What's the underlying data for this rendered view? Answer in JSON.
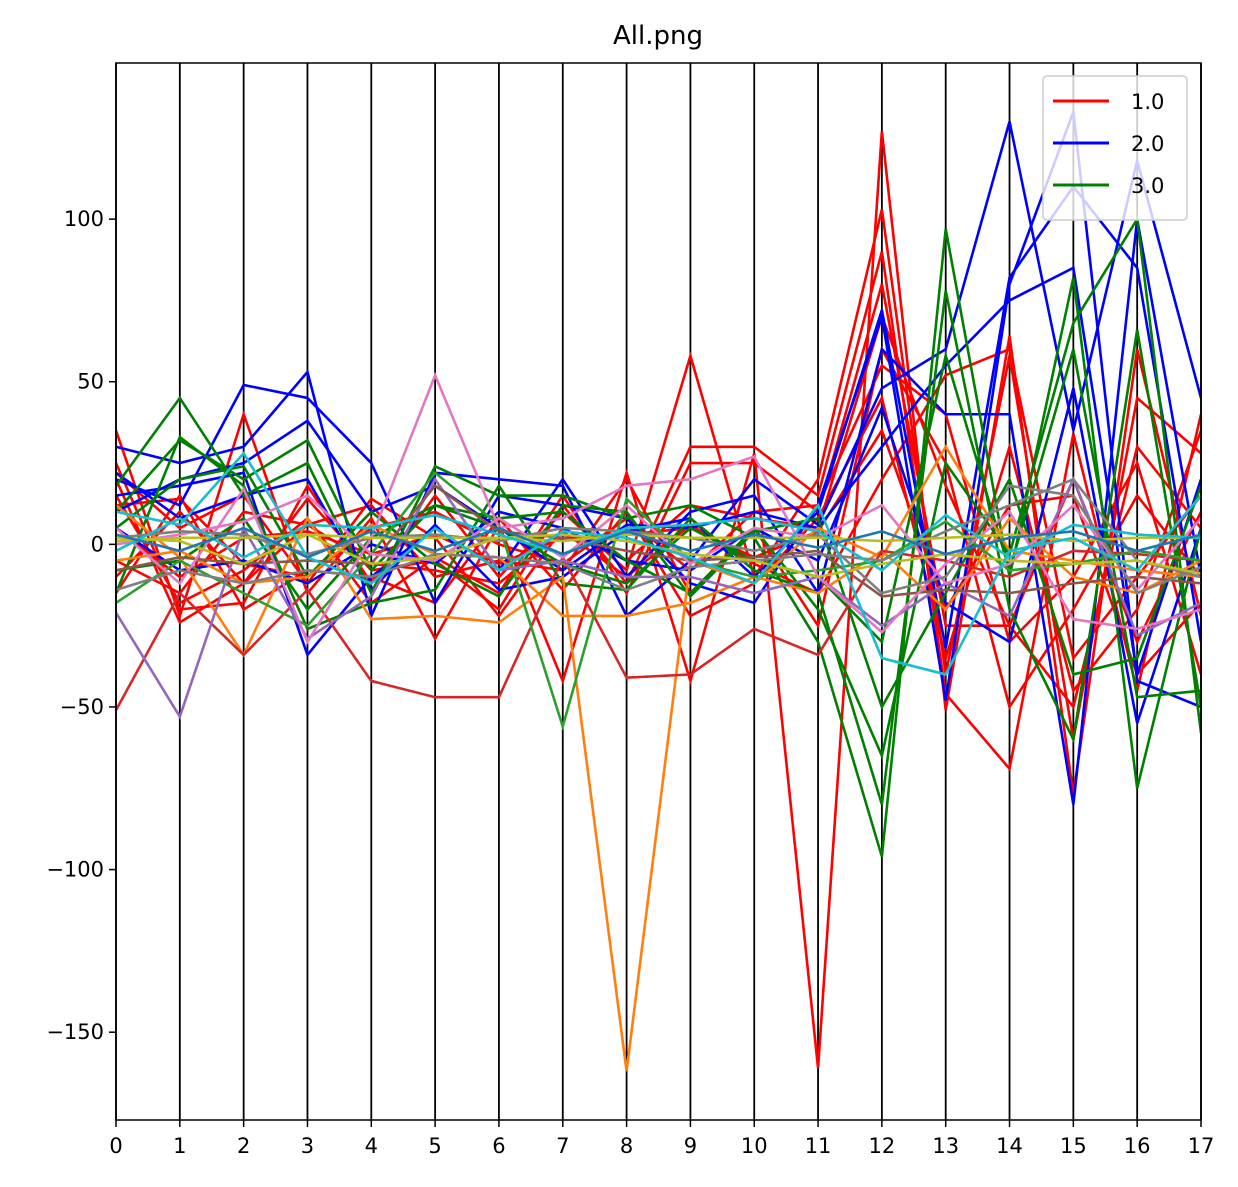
{
  "chart_data": {
    "type": "line",
    "title": "All.png",
    "xlabel": "",
    "ylabel": "",
    "x": [
      0,
      1,
      2,
      3,
      4,
      5,
      6,
      7,
      8,
      9,
      10,
      11,
      12,
      13,
      14,
      15,
      16,
      17
    ],
    "x_tick_labels": [
      "0",
      "1",
      "2",
      "3",
      "4",
      "5",
      "6",
      "7",
      "8",
      "9",
      "10",
      "11",
      "12",
      "13",
      "14",
      "15",
      "16",
      "17"
    ],
    "y_ticks": [
      100,
      50,
      0,
      -50,
      -100,
      -150
    ],
    "y_tick_labels": [
      "100",
      "50",
      "0",
      "−50",
      "−100",
      "−150"
    ],
    "xlim": [
      0,
      17
    ],
    "ylim": [
      -177,
      148
    ],
    "vertical_gridlines": true,
    "legend": {
      "position": "top-right",
      "entries": [
        {
          "label": "1.0",
          "color": "#ff0000"
        },
        {
          "label": "2.0",
          "color": "#0000ff"
        },
        {
          "label": "3.0",
          "color": "#008000"
        }
      ]
    },
    "series": [
      {
        "color": "#ff0000",
        "values": [
          35,
          -22,
          40,
          -15,
          8,
          -29,
          6,
          -42,
          22,
          -42,
          28,
          -161,
          127,
          -51,
          64,
          -77,
          60,
          -22
        ]
      },
      {
        "color": "#ff0000",
        "values": [
          25,
          -20,
          -18,
          18,
          -12,
          15,
          -10,
          10,
          -8,
          58,
          -10,
          20,
          103,
          -40,
          58,
          -60,
          45,
          28
        ]
      },
      {
        "color": "#ff0000",
        "values": [
          20,
          -24,
          -12,
          14,
          -8,
          -5,
          -20,
          12,
          -12,
          30,
          30,
          15,
          90,
          -46,
          -69,
          34,
          -45,
          40
        ]
      },
      {
        "color": "#ff0000",
        "values": [
          15,
          -18,
          -8,
          8,
          -18,
          -4,
          -15,
          15,
          -15,
          25,
          25,
          10,
          80,
          -25,
          -25,
          20,
          -30,
          10
        ]
      },
      {
        "color": "#ff0000",
        "values": [
          -10,
          10,
          -12,
          6,
          12,
          -10,
          -5,
          -8,
          20,
          -15,
          5,
          -25,
          60,
          25,
          -50,
          -20,
          15,
          -10
        ]
      },
      {
        "color": "#ff0000",
        "values": [
          -15,
          15,
          -20,
          -8,
          -10,
          -18,
          8,
          -14,
          10,
          -22,
          -12,
          8,
          45,
          -35,
          30,
          -45,
          -20,
          35
        ]
      },
      {
        "color": "#ff0000",
        "values": [
          22,
          5,
          15,
          -12,
          14,
          2,
          -22,
          5,
          -5,
          12,
          8,
          5,
          70,
          18,
          -25,
          -50,
          30,
          5
        ]
      },
      {
        "color": "#ff0000",
        "values": [
          5,
          -10,
          2,
          4,
          -3,
          3,
          -6,
          2,
          3,
          5,
          -4,
          4,
          35,
          -20,
          12,
          15,
          -40,
          -18
        ]
      },
      {
        "color": "#ff0000",
        "values": [
          12,
          14,
          -6,
          -10,
          5,
          10,
          0,
          -6,
          8,
          -8,
          10,
          12,
          55,
          40,
          -30,
          -10,
          25,
          -40
        ]
      },
      {
        "color": "#ff0000",
        "values": [
          -5,
          -15,
          10,
          6,
          -6,
          -8,
          -12,
          4,
          -10,
          6,
          -6,
          -15,
          20,
          52,
          60,
          -35,
          -10,
          15
        ]
      },
      {
        "color": "#0000ff",
        "values": [
          30,
          25,
          30,
          53,
          -22,
          22,
          20,
          18,
          -22,
          -5,
          20,
          6,
          48,
          60,
          130,
          35,
          118,
          45
        ]
      },
      {
        "color": "#0000ff",
        "values": [
          20,
          12,
          49,
          45,
          25,
          -18,
          15,
          12,
          8,
          -12,
          -18,
          12,
          70,
          -48,
          80,
          133,
          -42,
          -50
        ]
      },
      {
        "color": "#0000ff",
        "values": [
          15,
          18,
          22,
          -34,
          -10,
          5,
          -8,
          20,
          -10,
          10,
          15,
          -15,
          60,
          40,
          40,
          -80,
          100,
          -10
        ]
      },
      {
        "color": "#0000ff",
        "values": [
          10,
          20,
          25,
          38,
          10,
          18,
          5,
          -8,
          6,
          5,
          10,
          5,
          30,
          55,
          75,
          85,
          -40,
          20
        ]
      },
      {
        "color": "#0000ff",
        "values": [
          22,
          8,
          15,
          20,
          -14,
          6,
          -14,
          -10,
          4,
          8,
          -10,
          10,
          72,
          -32,
          82,
          110,
          85,
          -30
        ]
      },
      {
        "color": "#0000ff",
        "values": [
          5,
          -8,
          -5,
          -12,
          0,
          -6,
          10,
          5,
          -5,
          -8,
          5,
          -5,
          42,
          -18,
          -30,
          48,
          -55,
          5
        ]
      },
      {
        "color": "#008000",
        "values": [
          18,
          45,
          15,
          25,
          -15,
          24,
          15,
          15,
          8,
          12,
          2,
          -30,
          -96,
          97,
          -10,
          82,
          -75,
          5
        ]
      },
      {
        "color": "#008000",
        "values": [
          10,
          32,
          20,
          32,
          -8,
          12,
          8,
          10,
          -5,
          -15,
          5,
          -20,
          -65,
          25,
          -3,
          68,
          100,
          -58
        ]
      },
      {
        "color": "#008000",
        "values": [
          -15,
          33,
          18,
          -26,
          -18,
          -14,
          18,
          -12,
          -14,
          8,
          -8,
          -15,
          -80,
          78,
          -20,
          -60,
          66,
          -50
        ]
      },
      {
        "color": "#008000",
        "values": [
          5,
          20,
          24,
          -10,
          10,
          -6,
          -16,
          12,
          10,
          -16,
          4,
          8,
          -50,
          -15,
          20,
          -40,
          -35,
          18
        ]
      },
      {
        "color": "#008000",
        "values": [
          -8,
          -5,
          8,
          -20,
          2,
          12,
          5,
          -6,
          -12,
          5,
          -5,
          -10,
          -30,
          58,
          -8,
          60,
          -47,
          -45
        ]
      },
      {
        "color": "#ff7f0e",
        "values": [
          12,
          -4,
          -34,
          8,
          -23,
          -22,
          -24,
          -10,
          -162,
          -5,
          -12,
          5,
          -4,
          30,
          -2,
          -5,
          -8,
          -10
        ]
      },
      {
        "color": "#ff7f0e",
        "values": [
          -5,
          -2,
          -12,
          -10,
          6,
          -3,
          -4,
          -22,
          -22,
          -18,
          -10,
          -15,
          -2,
          -20,
          8,
          -10,
          -15,
          -5
        ]
      },
      {
        "color": "#d62728",
        "values": [
          -51,
          -15,
          -34,
          -14,
          -42,
          -47,
          -47,
          -4,
          -41,
          -40,
          -26,
          -34,
          -2,
          -5,
          -10,
          -2,
          -3,
          -5
        ]
      },
      {
        "color": "#2ca02c",
        "values": [
          -18,
          -5,
          -15,
          -25,
          -3,
          22,
          6,
          -56,
          14,
          -5,
          -10,
          -8,
          -5,
          7,
          -8,
          -6,
          -2,
          -5
        ]
      },
      {
        "color": "#9467bd",
        "values": [
          -21,
          -53,
          5,
          -29,
          -16,
          20,
          -8,
          -5,
          -10,
          -10,
          -15,
          -10,
          -25,
          -12,
          -22,
          20,
          -28,
          -18
        ]
      },
      {
        "color": "#8c564b",
        "values": [
          -8,
          -4,
          -6,
          -5,
          -6,
          18,
          4,
          2,
          -2,
          -5,
          -4,
          -2,
          -16,
          -14,
          -15,
          -12,
          -10,
          -12
        ]
      },
      {
        "color": "#e377c2",
        "values": [
          5,
          -12,
          17,
          -30,
          2,
          52,
          5,
          8,
          18,
          20,
          27,
          -10,
          -27,
          -6,
          10,
          -23,
          -26,
          -20
        ]
      },
      {
        "color": "#e377c2",
        "values": [
          0,
          3,
          7,
          15,
          -3,
          -5,
          8,
          -4,
          12,
          -6,
          5,
          2,
          12,
          -12,
          -6,
          12,
          -14,
          8
        ]
      },
      {
        "color": "#7f7f7f",
        "values": [
          -14,
          -8,
          -12,
          -8,
          -10,
          -3,
          -4,
          -6,
          -14,
          -7,
          -5,
          -3,
          -5,
          4,
          12,
          20,
          -5,
          -10
        ]
      },
      {
        "color": "#7f7f7f",
        "values": [
          2,
          4,
          3,
          -3,
          2,
          3,
          1,
          5,
          4,
          2,
          -2,
          3,
          -15,
          -10,
          18,
          15,
          -15,
          -7
        ]
      },
      {
        "color": "#bcbd22",
        "values": [
          2,
          1,
          -6,
          3,
          -6,
          -4,
          2,
          3,
          1,
          -3,
          -5,
          -10,
          -6,
          -3,
          -5,
          -6,
          -5,
          -9
        ]
      },
      {
        "color": "#bcbd22",
        "values": [
          1,
          2,
          2,
          3,
          2,
          2,
          2,
          1,
          3,
          2,
          2,
          2,
          1,
          2,
          3,
          1,
          2,
          2
        ]
      },
      {
        "color": "#17becf",
        "values": [
          10,
          6,
          28,
          -4,
          -12,
          5,
          -8,
          4,
          2,
          -4,
          -12,
          12,
          -35,
          -40,
          -2,
          2,
          -8,
          15
        ]
      },
      {
        "color": "#17becf",
        "values": [
          -2,
          8,
          -4,
          6,
          5,
          9,
          3,
          -3,
          5,
          6,
          8,
          4,
          -8,
          9,
          -4,
          6,
          3,
          2
        ]
      },
      {
        "color": "#1f77b4",
        "values": [
          3,
          -2,
          5,
          -4,
          4,
          -2,
          5,
          -3,
          4,
          -2,
          3,
          -1,
          4,
          -3,
          2,
          4,
          -2,
          3
        ]
      }
    ]
  }
}
